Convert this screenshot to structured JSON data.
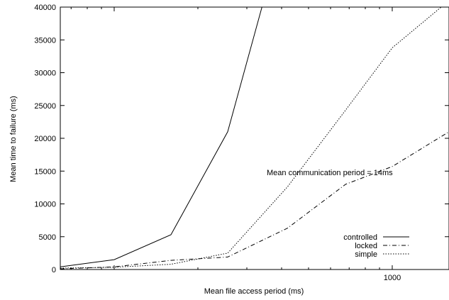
{
  "chart_data": {
    "type": "line",
    "title": "",
    "xlabel": "Mean file access period (ms)",
    "ylabel": "Mean time to failure (ms)",
    "x_scale": "log",
    "xlim": [
      64,
      1600
    ],
    "ylim": [
      0,
      40000
    ],
    "x_ticks": [
      1000
    ],
    "y_ticks": [
      0,
      5000,
      10000,
      15000,
      20000,
      25000,
      30000,
      35000,
      40000
    ],
    "grid": false,
    "legend_position": "bottom-right",
    "annotation": "Mean communication period = 14ms",
    "series": [
      {
        "name": "controlled",
        "dash": "solid",
        "x": [
          64,
          100,
          160,
          256,
          340
        ],
        "y": [
          400,
          1500,
          5300,
          21000,
          40000
        ]
      },
      {
        "name": "locked",
        "dash": "dashdot",
        "x": [
          64,
          100,
          160,
          256,
          420,
          680,
          1000,
          1600
        ],
        "y": [
          100,
          400,
          1400,
          1900,
          6300,
          13000,
          15700,
          21000
        ]
      },
      {
        "name": "simple",
        "dash": "dotted",
        "x": [
          64,
          100,
          160,
          256,
          420,
          680,
          1000,
          1500
        ],
        "y": [
          200,
          350,
          800,
          2500,
          12600,
          24300,
          33800,
          40000
        ]
      }
    ]
  }
}
